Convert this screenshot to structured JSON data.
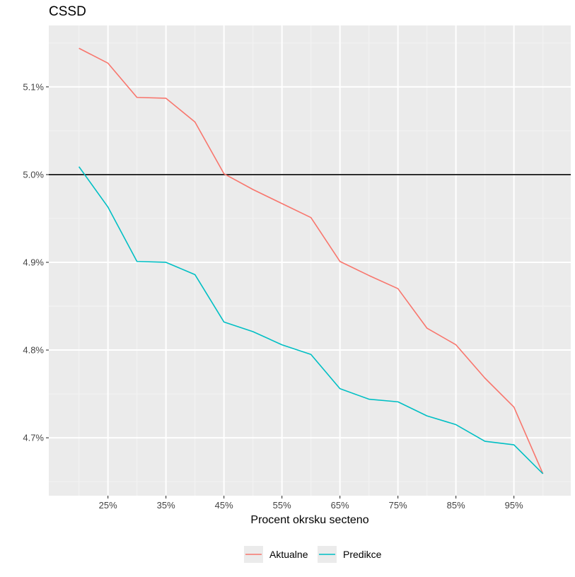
{
  "chart_data": {
    "type": "line",
    "title": "CSSD",
    "xlabel": "Procent okrsku secteno",
    "ylabel": "",
    "x_unit": "percent",
    "y_unit": "percent",
    "x": [
      20,
      25,
      30,
      35,
      40,
      45,
      50,
      55,
      60,
      65,
      70,
      75,
      80,
      85,
      90,
      95,
      100
    ],
    "x_ticks": [
      25,
      35,
      45,
      55,
      65,
      75,
      85,
      95
    ],
    "x_tick_labels": [
      "25%",
      "35%",
      "45%",
      "55%",
      "65%",
      "75%",
      "85%",
      "95%"
    ],
    "xlim": [
      14.8,
      104.8
    ],
    "y_ticks": [
      4.7,
      4.8,
      4.9,
      5.0,
      5.1
    ],
    "y_tick_labels": [
      "4.7%",
      "4.8%",
      "4.9%",
      "5.0%",
      "5.1%"
    ],
    "ylim": [
      4.634,
      5.17
    ],
    "grid": true,
    "reference_line": 5.0,
    "legend_position": "bottom",
    "series": [
      {
        "name": "Aktualne",
        "color": "#F8766D",
        "values": [
          5.144,
          5.127,
          5.088,
          5.087,
          5.06,
          5.001,
          4.983,
          4.967,
          4.951,
          4.901,
          4.885,
          4.87,
          4.825,
          4.806,
          4.768,
          4.735,
          4.659
        ]
      },
      {
        "name": "Predikce",
        "color": "#00BFC4",
        "values": [
          5.009,
          4.963,
          4.901,
          4.9,
          4.886,
          4.832,
          4.821,
          4.806,
          4.795,
          4.756,
          4.744,
          4.741,
          4.725,
          4.715,
          4.696,
          4.692,
          4.659
        ]
      }
    ]
  },
  "colors": {
    "panel_background": "#EBEBEB",
    "grid_major": "#FFFFFF",
    "grid_minor": "#F2F2F2",
    "reference_line": "#000000",
    "tick_mark": "#333333"
  }
}
